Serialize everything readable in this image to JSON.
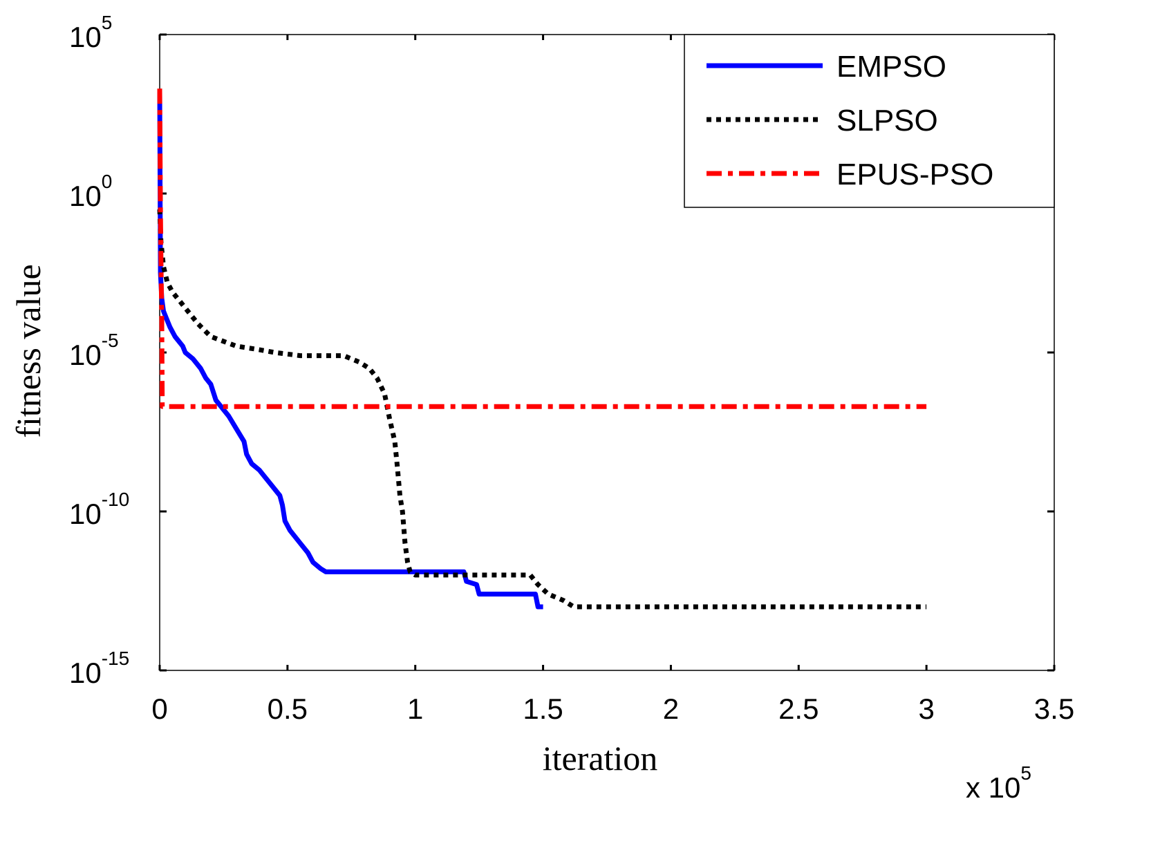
{
  "chart_data": {
    "type": "line",
    "xlabel": "iteration",
    "ylabel": "fitness value",
    "x_multiplier_label": {
      "prefix": "x 10",
      "exponent": "5"
    },
    "xlim": [
      0,
      3.5
    ],
    "x_ticks": [
      {
        "value": 0,
        "label": "0"
      },
      {
        "value": 0.5,
        "label": "0.5"
      },
      {
        "value": 1,
        "label": "1"
      },
      {
        "value": 1.5,
        "label": "1.5"
      },
      {
        "value": 2,
        "label": "2"
      },
      {
        "value": 2.5,
        "label": "2.5"
      },
      {
        "value": 3,
        "label": "3"
      },
      {
        "value": 3.5,
        "label": "3.5"
      }
    ],
    "y_scale": "log",
    "ylim_exponent": [
      -15,
      5
    ],
    "y_ticks": [
      {
        "exponent": 5,
        "base": "10",
        "exp_label": "5"
      },
      {
        "exponent": 0,
        "base": "10",
        "exp_label": "0"
      },
      {
        "exponent": -5,
        "base": "10",
        "exp_label": "-5"
      },
      {
        "exponent": -10,
        "base": "10",
        "exp_label": "-10"
      },
      {
        "exponent": -15,
        "base": "10",
        "exp_label": "-15"
      }
    ],
    "grid": false,
    "legend_position": "top-right",
    "series": [
      {
        "name": "EMPSO",
        "color": "#0000ff",
        "style": "solid",
        "x": [
          0,
          0.003,
          0.008,
          0.015,
          0.025,
          0.04,
          0.06,
          0.09,
          0.1,
          0.13,
          0.16,
          0.18,
          0.2,
          0.22,
          0.27,
          0.3,
          0.33,
          0.34,
          0.36,
          0.39,
          0.43,
          0.47,
          0.48,
          0.49,
          0.51,
          0.55,
          0.58,
          0.6,
          0.63,
          0.65,
          0.7,
          1.19,
          1.2,
          1.24,
          1.25,
          1.46,
          1.47,
          1.48,
          1.5
        ],
        "y_exp": [
          3.2,
          -2.5,
          -3.3,
          -3.7,
          -3.9,
          -4.2,
          -4.5,
          -4.8,
          -5.0,
          -5.2,
          -5.5,
          -5.8,
          -6.0,
          -6.5,
          -7.0,
          -7.4,
          -7.8,
          -8.2,
          -8.5,
          -8.7,
          -9.1,
          -9.5,
          -9.8,
          -10.3,
          -10.6,
          -11.0,
          -11.3,
          -11.6,
          -11.8,
          -11.9,
          -11.9,
          -11.9,
          -12.2,
          -12.3,
          -12.6,
          -12.6,
          -12.6,
          -13.0,
          -13.0
        ]
      },
      {
        "name": "SLPSO",
        "color": "#000000",
        "style": "dotted",
        "x": [
          0,
          0.005,
          0.015,
          0.03,
          0.05,
          0.09,
          0.15,
          0.2,
          0.3,
          0.38,
          0.45,
          0.55,
          0.65,
          0.72,
          0.78,
          0.82,
          0.85,
          0.88,
          0.9,
          0.92,
          0.93,
          0.94,
          0.95,
          0.96,
          0.97,
          0.98,
          1.0,
          1.2,
          1.45,
          1.48,
          1.52,
          1.58,
          1.62,
          3.0
        ],
        "y_exp": [
          -0.5,
          -1.5,
          -2.3,
          -2.8,
          -3.1,
          -3.5,
          -4.1,
          -4.5,
          -4.8,
          -4.9,
          -5.0,
          -5.1,
          -5.1,
          -5.1,
          -5.3,
          -5.5,
          -5.8,
          -6.3,
          -7.1,
          -7.8,
          -8.6,
          -9.5,
          -10.0,
          -11.0,
          -11.6,
          -11.9,
          -12.0,
          -12.0,
          -12.0,
          -12.3,
          -12.6,
          -12.8,
          -13.0,
          -13.0
        ]
      },
      {
        "name": "EPUS-PSO",
        "color": "#ff0000",
        "style": "dashdot",
        "x": [
          0,
          0.003,
          0.005,
          0.008,
          0.01,
          3.0
        ],
        "y_exp": [
          3.3,
          -0.5,
          -2.0,
          -4.0,
          -6.7,
          -6.7
        ]
      }
    ]
  }
}
